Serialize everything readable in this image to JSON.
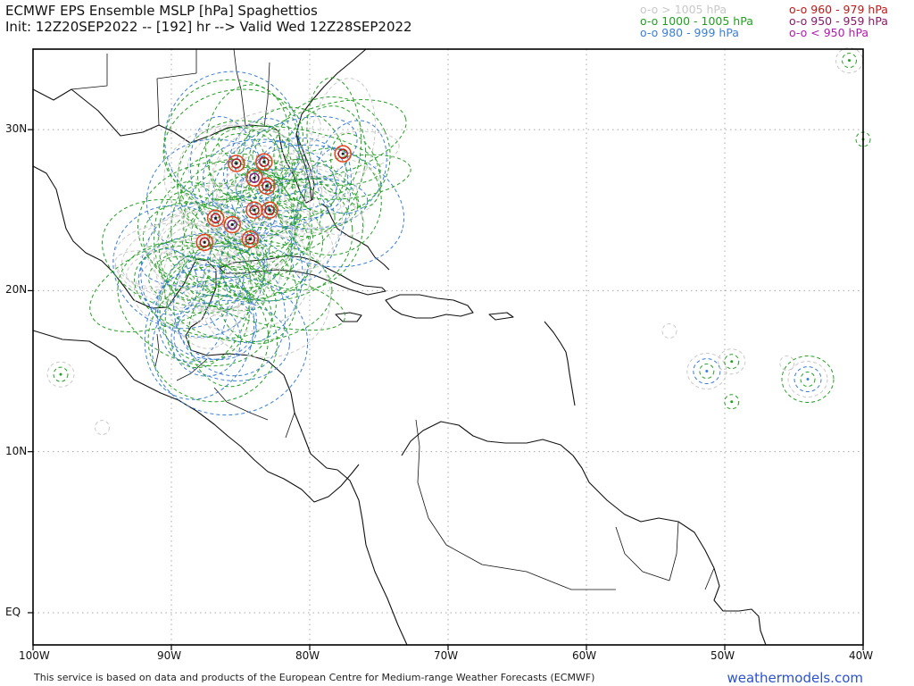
{
  "header": {
    "title": "ECMWF EPS Ensemble MSLP [hPa] Spaghettios",
    "subtitle": "Init: 12Z20SEP2022 -- [192] hr --> Valid Wed 12Z28SEP2022"
  },
  "legend": [
    {
      "label": "o-o > 1005 hPa",
      "color": "#c8c8c8"
    },
    {
      "label": "o-o 1000 - 1005 hPa",
      "color": "#22a022"
    },
    {
      "label": "o-o 980 - 999 hPa",
      "color": "#3a7fd5"
    },
    {
      "label": "o-o 960 - 979 hPa",
      "color": "#c01818"
    },
    {
      "label": "o-o 950 - 959 hPa",
      "color": "#8a1a6a"
    },
    {
      "label": "o-o < 950 hPa",
      "color": "#b01ab0"
    }
  ],
  "axes": {
    "lat_labels": [
      "30N",
      "20N",
      "10N",
      "EQ"
    ],
    "lon_labels": [
      "100W",
      "90W",
      "80W",
      "70W",
      "60W",
      "50W",
      "40W"
    ],
    "grid": "dotted"
  },
  "footer": {
    "credit": "This service is based on data and products of the European Centre for Medium-range Weather Forecasts (ECMWF)",
    "website": "weathermodels.com"
  },
  "chart_data": {
    "type": "map-contours",
    "region": "Tropical Atlantic, Gulf of Mexico and Caribbean",
    "lon_range": [
      -100,
      -40
    ],
    "lat_range": [
      -2,
      35
    ],
    "lat_ticks": [
      30,
      20,
      10,
      0
    ],
    "lon_ticks": [
      -100,
      -90,
      -80,
      -70,
      -60,
      -50,
      -40
    ],
    "spaghetti_centers": [
      {
        "lon": -85.6,
        "lat": 24.1,
        "color": "#8a1a6a"
      },
      {
        "lon": -84.0,
        "lat": 27.0,
        "color": "#8a1a6a"
      },
      {
        "lon": -85.3,
        "lat": 27.9,
        "color": "#c01818"
      },
      {
        "lon": -83.3,
        "lat": 28.0,
        "color": "#c01818"
      },
      {
        "lon": -83.1,
        "lat": 26.5,
        "color": "#c01818"
      },
      {
        "lon": -82.9,
        "lat": 25.0,
        "color": "#c01818"
      },
      {
        "lon": -84.0,
        "lat": 25.0,
        "color": "#c01818"
      },
      {
        "lon": -87.6,
        "lat": 23.0,
        "color": "#c01818"
      },
      {
        "lon": -84.3,
        "lat": 23.2,
        "color": "#c01818"
      },
      {
        "lon": -77.6,
        "lat": 28.5,
        "color": "#c01818"
      },
      {
        "lon": -86.8,
        "lat": 24.5,
        "color": "#c01818"
      },
      {
        "lon": -51.3,
        "lat": 15.0,
        "color": "#3a7fd5"
      },
      {
        "lon": -44.0,
        "lat": 14.5,
        "color": "#3a7fd5"
      },
      {
        "lon": -49.5,
        "lat": 15.6,
        "color": "#22a022"
      },
      {
        "lon": -49.5,
        "lat": 13.1,
        "color": "#22a022"
      },
      {
        "lon": -98.0,
        "lat": 14.8,
        "color": "#22a022"
      },
      {
        "lon": -40.0,
        "lat": 29.4,
        "color": "#22a022"
      },
      {
        "lon": -41.0,
        "lat": 34.3,
        "color": "#22a022"
      }
    ]
  }
}
